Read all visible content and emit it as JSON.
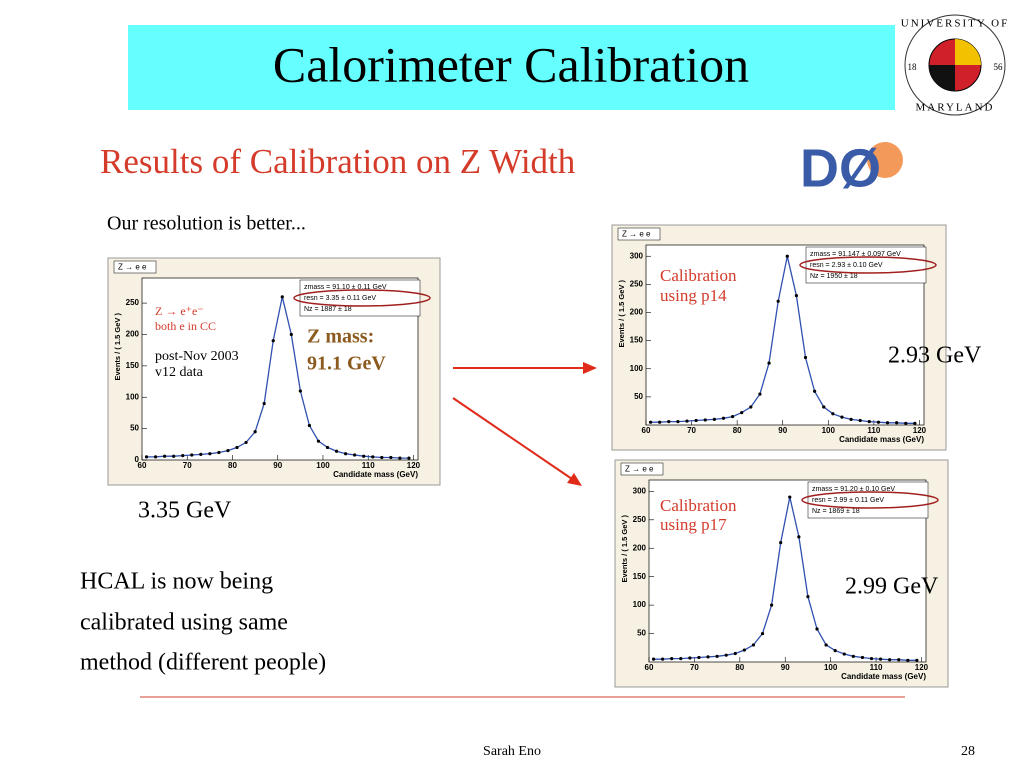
{
  "title": "Calorimeter Calibration",
  "logo": {
    "arc_top": "UNIVERSITY OF",
    "arc_bottom": "MARYLAND",
    "year_left": "18",
    "year_right": "56"
  },
  "d0_logo": "DØ",
  "subtitle": "Results of Calibration on Z Width",
  "intro": "Our resolution is better...",
  "bin_centers": [
    61,
    63,
    65,
    67,
    69,
    71,
    73,
    75,
    77,
    79,
    81,
    83,
    85,
    87,
    89,
    91,
    93,
    95,
    97,
    99,
    101,
    103,
    105,
    107,
    109,
    111,
    113,
    115,
    117,
    119
  ],
  "plots": [
    {
      "title": "Z → e e",
      "ylabel": "Events / ( 1.5 GeV )",
      "xlabel": "Candidate mass (GeV)",
      "xlim": [
        60,
        121
      ],
      "xticks": [
        60,
        70,
        80,
        90,
        100,
        110,
        120
      ],
      "ylim": [
        0,
        290
      ],
      "yticks": [
        0,
        50,
        100,
        150,
        200,
        250
      ],
      "values": [
        5,
        5,
        6,
        6,
        7,
        8,
        9,
        10,
        12,
        15,
        20,
        28,
        45,
        90,
        190,
        260,
        200,
        110,
        55,
        30,
        20,
        14,
        10,
        8,
        6,
        5,
        4,
        4,
        3,
        3
      ],
      "stats": [
        "zmass =  91.10 ± 0.11 GeV",
        "resn =  3.35 ± 0.11 GeV",
        "Nz =  1887 ± 18"
      ],
      "annotations": [
        "Z → e⁺e⁻",
        "both e in CC",
        "post-Nov 2003",
        "v12 data",
        "Z mass:",
        "91.1 GeV"
      ],
      "result": "3.35 GeV"
    },
    {
      "title": "Z → e e",
      "ylabel": "Events / ( 1.5 GeV )",
      "xlabel": "Candidate mass (GeV)",
      "xlim": [
        60,
        121
      ],
      "xticks": [
        60,
        70,
        80,
        90,
        100,
        110,
        120
      ],
      "ylim": [
        0,
        320
      ],
      "yticks": [
        50,
        100,
        150,
        200,
        250,
        300
      ],
      "values": [
        5,
        5,
        6,
        6,
        7,
        8,
        9,
        10,
        12,
        15,
        22,
        32,
        55,
        110,
        220,
        300,
        230,
        120,
        60,
        32,
        20,
        14,
        10,
        8,
        6,
        5,
        4,
        4,
        3,
        3
      ],
      "stats": [
        "zmass =  91.147 ± 0.097 GeV",
        "resn =  2.93 ± 0.10 GeV",
        "Nz =  1950 ± 18"
      ],
      "annotations": [
        "Calibration",
        "using p14"
      ],
      "result": "2.93 GeV"
    },
    {
      "title": "Z → e e",
      "ylabel": "Events / ( 1.5 GeV )",
      "xlabel": "Candidate mass (GeV)",
      "xlim": [
        60,
        121
      ],
      "xticks": [
        60,
        70,
        80,
        90,
        100,
        110,
        120
      ],
      "ylim": [
        0,
        320
      ],
      "yticks": [
        50,
        100,
        150,
        200,
        250,
        300
      ],
      "values": [
        5,
        5,
        6,
        6,
        7,
        8,
        9,
        10,
        12,
        15,
        21,
        30,
        50,
        100,
        210,
        290,
        220,
        115,
        58,
        30,
        20,
        14,
        10,
        8,
        6,
        5,
        4,
        4,
        3,
        3
      ],
      "stats": [
        "zmass =  91.20 ± 0.10 GeV",
        "resn =  2.99 ± 0.11 GeV",
        "Nz =  1869 ± 18"
      ],
      "annotations": [
        "Calibration",
        "using p17"
      ],
      "result": "2.99 GeV"
    }
  ],
  "note": [
    "HCAL is now being",
    "calibrated using same",
    "method (different people)"
  ],
  "footer": {
    "author": "Sarah Eno",
    "page": "28"
  }
}
